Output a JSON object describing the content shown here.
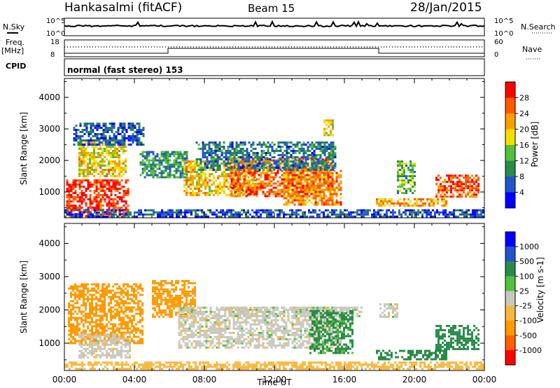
{
  "header": {
    "station": "Hankasalmi (fitACF)",
    "beam": "Beam 15",
    "date": "28/Jan/2015"
  },
  "status_panels": {
    "nsky": {
      "label": "N.Sky",
      "tick_top": "10^5",
      "tick_bottom": "10^0",
      "right_label": "N.Search",
      "right_tick_top": "10^5",
      "right_tick_bottom": "10^0"
    },
    "freq": {
      "label_line1": "Freq.",
      "label_line2": "[MHz]",
      "tick_top": "18",
      "tick_bottom": "8",
      "right_label": "Nave",
      "right_tick_top": "60",
      "right_tick_bottom": "0"
    },
    "cpid": {
      "label": "CPID",
      "mode_text": "normal (fast stereo) 153"
    }
  },
  "chart_data": [
    {
      "type": "heatmap",
      "title": "",
      "quantity": "Power",
      "ylabel": "Slant Range [km]",
      "xlabel": "",
      "x_range_hours": [
        0,
        24
      ],
      "ylim": [
        180,
        4600
      ],
      "y_ticks": [
        "1000",
        "2000",
        "3000",
        "4000"
      ],
      "colorbar": {
        "label": "Power [dB]",
        "ticks": [
          "4",
          "8",
          "12",
          "16",
          "20",
          "24",
          "28"
        ],
        "range": [
          0,
          30
        ],
        "colors": [
          "#0000ff",
          "#2255cc",
          "#2a8a4a",
          "#55c040",
          "#f2e000",
          "#f8a000",
          "#ff5a00",
          "#ff0000"
        ]
      },
      "regions": [
        {
          "t0": 0.1,
          "t1": 3.7,
          "r0": 250,
          "r1": 1400,
          "level": 27
        },
        {
          "t0": 0.8,
          "t1": 3.5,
          "r0": 1500,
          "r1": 2600,
          "level": 18
        },
        {
          "t0": 0.5,
          "t1": 4.5,
          "r0": 2500,
          "r1": 3200,
          "level": 6
        },
        {
          "t0": 4.3,
          "t1": 7.0,
          "r0": 1500,
          "r1": 2300,
          "level": 10
        },
        {
          "t0": 6.8,
          "t1": 11.0,
          "r0": 900,
          "r1": 2000,
          "level": 19
        },
        {
          "t0": 9.5,
          "t1": 15.3,
          "r0": 850,
          "r1": 2100,
          "level": 24
        },
        {
          "t0": 12.5,
          "t1": 15.8,
          "r0": 600,
          "r1": 1700,
          "level": 22
        },
        {
          "t0": 7.5,
          "t1": 15.5,
          "r0": 1700,
          "r1": 2600,
          "level": 8
        },
        {
          "t0": 14.8,
          "t1": 15.3,
          "r0": 2800,
          "r1": 3300,
          "level": 18
        },
        {
          "t0": 17.8,
          "t1": 21.8,
          "r0": 550,
          "r1": 800,
          "level": 20
        },
        {
          "t0": 21.2,
          "t1": 23.7,
          "r0": 850,
          "r1": 1550,
          "level": 25
        },
        {
          "t0": 19.0,
          "t1": 20.0,
          "r0": 1000,
          "r1": 2000,
          "level": 12
        },
        {
          "t0": 0.0,
          "t1": 24.0,
          "r0": 200,
          "r1": 450,
          "level": 5
        }
      ]
    },
    {
      "type": "heatmap",
      "title": "",
      "quantity": "Velocity",
      "ylabel": "Slant Range [km]",
      "xlabel": "Time UT",
      "x_range_hours": [
        0,
        24
      ],
      "x_ticks": [
        "00:00",
        "04:00",
        "08:00",
        "12:00",
        "16:00",
        "20:00",
        "00:00"
      ],
      "ylim": [
        180,
        4600
      ],
      "y_ticks": [
        "1000",
        "2000",
        "3000",
        "4000"
      ],
      "colorbar": {
        "label": "Velocity [m s-1]",
        "ticks": [
          "1000",
          "500",
          "100",
          "25",
          "-25",
          "-100",
          "-500",
          "-1000"
        ],
        "range": [
          -1200,
          1200
        ],
        "colors": [
          "#ff0000",
          "#ff6000",
          "#ff9a00",
          "#f8b840",
          "#c8c8c0",
          "#55c040",
          "#2a8a4a",
          "#2255cc",
          "#0000ff"
        ]
      },
      "regions": [
        {
          "t0": 0.2,
          "t1": 4.5,
          "r0": 1000,
          "r1": 2800,
          "level": -260
        },
        {
          "t0": 0.8,
          "t1": 3.8,
          "r0": 600,
          "r1": 1300,
          "level": -4
        },
        {
          "t0": 5.0,
          "t1": 7.5,
          "r0": 1800,
          "r1": 2900,
          "level": -180
        },
        {
          "t0": 6.5,
          "t1": 15.8,
          "r0": 850,
          "r1": 2100,
          "level": 0
        },
        {
          "t0": 9.0,
          "t1": 17.0,
          "r0": 1800,
          "r1": 2100,
          "level": 0
        },
        {
          "t0": 14.0,
          "t1": 16.5,
          "r0": 700,
          "r1": 2000,
          "level": 140
        },
        {
          "t0": 17.8,
          "t1": 21.8,
          "r0": 500,
          "r1": 800,
          "level": 180
        },
        {
          "t0": 21.2,
          "t1": 23.7,
          "r0": 850,
          "r1": 1550,
          "level": 220
        },
        {
          "t0": 18.0,
          "t1": 19.0,
          "r0": 1800,
          "r1": 2200,
          "level": 2
        },
        {
          "t0": 0.0,
          "t1": 24.0,
          "r0": 200,
          "r1": 450,
          "level": -60
        }
      ]
    }
  ]
}
